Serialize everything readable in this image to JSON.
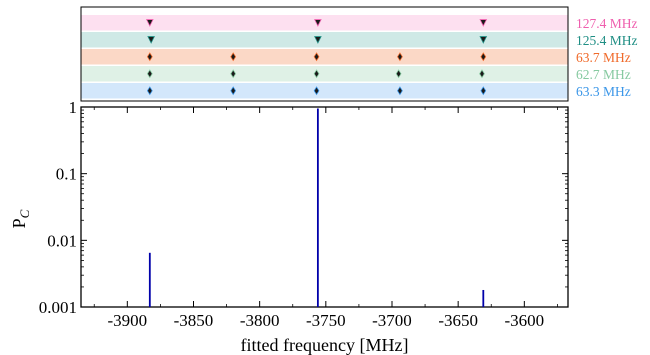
{
  "chart_data": [
    {
      "type": "scatter",
      "panel": "bands",
      "xlim": [
        -3935,
        -3567
      ],
      "bands": [
        {
          "label": "127.4 MHz",
          "band_color": "#fde0f0",
          "text_color": "#ef5fae",
          "marker": "v",
          "points": [
            -3883,
            -3756,
            -3631
          ]
        },
        {
          "label": "125.4 MHz",
          "band_color": "#cfe9e6",
          "text_color": "#1f8e84",
          "marker": "v",
          "points": [
            -3882,
            -3756,
            -3631
          ]
        },
        {
          "label": "63.7 MHz",
          "band_color": "#fbd8c6",
          "text_color": "#f06a2a",
          "marker": "d",
          "points": [
            -3883,
            -3820,
            -3757,
            -3694,
            -3631
          ]
        },
        {
          "label": "62.7 MHz",
          "band_color": "#dff1e6",
          "text_color": "#86c9a0",
          "marker": "d",
          "points": [
            -3883,
            -3820,
            -3757,
            -3695,
            -3632
          ]
        },
        {
          "label": "63.3 MHz",
          "band_color": "#d3e7fb",
          "text_color": "#3a96e8",
          "marker": "d",
          "points": [
            -3883,
            -3820,
            -3757,
            -3694,
            -3631
          ]
        }
      ]
    },
    {
      "type": "line",
      "panel": "spectrum",
      "xlabel": "fitted frequency [MHz]",
      "ylabel_main": "P",
      "ylabel_sub": "C",
      "yscale": "log",
      "xlim": [
        -3935,
        -3567
      ],
      "ylim": [
        0.001,
        1
      ],
      "xticks": [
        -3900,
        -3850,
        -3800,
        -3750,
        -3700,
        -3650,
        -3600
      ],
      "xtick_labels": [
        "-3900",
        "-3850",
        "-3800",
        "-3750",
        "-3700",
        "-3650",
        "-3600"
      ],
      "yticks": [
        1,
        0.1,
        0.01,
        0.001
      ],
      "ytick_labels": [
        "1",
        "0.1",
        "0.01",
        "0.001"
      ],
      "line_color": "#0000aa",
      "peaks": [
        {
          "x": -3883,
          "y": 0.0065
        },
        {
          "x": -3756,
          "y": 0.95
        },
        {
          "x": -3631,
          "y": 0.0018
        }
      ]
    }
  ]
}
